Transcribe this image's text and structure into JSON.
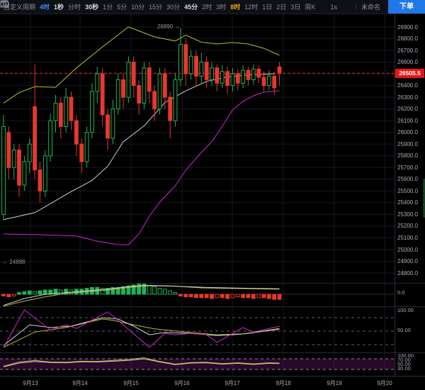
{
  "toolbar": {
    "period_menu": "自定义周期",
    "intervals": [
      {
        "id": "4h",
        "label": "4时",
        "state": "active-blue"
      },
      {
        "id": "1s-sec",
        "label": "1秒",
        "state": "favorite"
      },
      {
        "id": "time-line",
        "label": "分时",
        "state": "normal"
      },
      {
        "id": "30s",
        "label": "30秒",
        "state": "favorite"
      },
      {
        "id": "1m",
        "label": "1分",
        "state": "normal"
      },
      {
        "id": "5m",
        "label": "5分",
        "state": "normal"
      },
      {
        "id": "10m",
        "label": "10分",
        "state": "normal"
      },
      {
        "id": "15m",
        "label": "15分",
        "state": "normal"
      },
      {
        "id": "30m",
        "label": "30分",
        "state": "normal"
      },
      {
        "id": "45m",
        "label": "45分",
        "state": "favorite"
      },
      {
        "id": "2h",
        "label": "2时",
        "state": "normal"
      },
      {
        "id": "3h",
        "label": "3时",
        "state": "normal"
      },
      {
        "id": "8h",
        "label": "8时",
        "state": "active-yellow"
      },
      {
        "id": "12h",
        "label": "12时",
        "state": "normal"
      },
      {
        "id": "1d",
        "label": "1日",
        "state": "normal"
      },
      {
        "id": "2d",
        "label": "2日",
        "state": "normal"
      },
      {
        "id": "3d",
        "label": "3日",
        "state": "normal"
      },
      {
        "id": "1w",
        "label": "周K",
        "state": "normal"
      }
    ],
    "countdown": "1s",
    "layout_name": "未命名",
    "order_button": "下单"
  },
  "annotations": {
    "high_label": "26890 →",
    "alert_label": "← 24888",
    "last_price_label": "26505.5"
  },
  "axis_labels": {
    "price": [
      "26900.0",
      "26800.0",
      "26700.0",
      "26600.0",
      "26500.0",
      "26400.0",
      "26300.0",
      "26200.0",
      "26100.0",
      "26000.0",
      "25900.0",
      "25800.0",
      "25700.0",
      "25600.0",
      "25500.0",
      "25400.0",
      "25300.0",
      "25200.0",
      "25100.0",
      "25000.0",
      "24900.0",
      "24800.0"
    ],
    "time": [
      "9月13",
      "9月14",
      "9月15",
      "9月16",
      "9月17",
      "9月18",
      "9月19",
      "9月20"
    ],
    "volume": [
      "0.0"
    ],
    "kdj": [
      "100.00",
      "50.00"
    ],
    "rsi": [
      "100.00",
      "70.00",
      "50.00",
      "30.00"
    ]
  },
  "colors": {
    "up": "#1eb35b",
    "down": "#e8372c",
    "boll_upper": "#b8bd2a",
    "boll_mid": "#cdd0d8",
    "boll_lower": "#d024d0",
    "price_line": "#f02020",
    "grid": "#15181f",
    "separator": "#232833",
    "dash_level": "#5a5f6a",
    "order_button": "#2079e8"
  },
  "chart_data": {
    "type": "candlestick",
    "title": "",
    "last_price": 26505.5,
    "price_axis": {
      "min": 24800,
      "max": 26900,
      "tick_step": 100
    },
    "time_axis": [
      "9月13",
      "9月14",
      "9月15",
      "9月16",
      "9月17",
      "9月18",
      "9月19",
      "9月20"
    ],
    "high_annotation": {
      "price": 26890,
      "candle_index": 34
    },
    "alert_line": {
      "price": 24888
    },
    "candles": [
      [
        25300,
        26150,
        25250,
        26050
      ],
      [
        26000,
        26050,
        25600,
        25700
      ],
      [
        25700,
        25900,
        25600,
        25850
      ],
      [
        25850,
        25900,
        25450,
        25550
      ],
      [
        25550,
        25800,
        25500,
        25750
      ],
      [
        25750,
        25950,
        25650,
        25900
      ],
      [
        26220,
        26580,
        25600,
        25680
      ],
      [
        25680,
        25750,
        25400,
        25500
      ],
      [
        25500,
        25850,
        25450,
        25800
      ],
      [
        25800,
        26160,
        25750,
        26100
      ],
      [
        26100,
        26320,
        26000,
        26250
      ],
      [
        26250,
        26300,
        25950,
        26050
      ],
      [
        26050,
        26380,
        26000,
        26300
      ],
      [
        26300,
        26350,
        26020,
        26100
      ],
      [
        26100,
        26150,
        25800,
        25900
      ],
      [
        25900,
        25950,
        25650,
        25750
      ],
      [
        25750,
        26050,
        25700,
        26000
      ],
      [
        26000,
        26420,
        25950,
        26350
      ],
      [
        26350,
        26560,
        26250,
        26500
      ],
      [
        26500,
        26550,
        26050,
        26150
      ],
      [
        26150,
        26200,
        25850,
        25950
      ],
      [
        25950,
        26280,
        25900,
        26200
      ],
      [
        26200,
        26500,
        26150,
        26450
      ],
      [
        26450,
        26500,
        26200,
        26300
      ],
      [
        26300,
        26650,
        26250,
        26600
      ],
      [
        26600,
        26650,
        26300,
        26400
      ],
      [
        26400,
        26450,
        26150,
        26250
      ],
      [
        26250,
        26600,
        26200,
        26550
      ],
      [
        26550,
        26600,
        26250,
        26350
      ],
      [
        26350,
        26400,
        26100,
        26200
      ],
      [
        26200,
        26550,
        26150,
        26500
      ],
      [
        26500,
        26550,
        26200,
        26300
      ],
      [
        26300,
        26350,
        25950,
        26100
      ],
      [
        26100,
        26500,
        26050,
        26450
      ],
      [
        26450,
        26890,
        26400,
        26750
      ],
      [
        26750,
        26800,
        26400,
        26500
      ],
      [
        26500,
        26700,
        26450,
        26650
      ],
      [
        26650,
        26700,
        26400,
        26480
      ],
      [
        26480,
        26680,
        26420,
        26600
      ],
      [
        26600,
        26650,
        26380,
        26450
      ],
      [
        26450,
        26600,
        26400,
        26550
      ],
      [
        26550,
        26580,
        26350,
        26420
      ],
      [
        26420,
        26570,
        26380,
        26520
      ],
      [
        26520,
        26560,
        26330,
        26400
      ],
      [
        26400,
        26550,
        26350,
        26500
      ],
      [
        26500,
        26540,
        26360,
        26420
      ],
      [
        26420,
        26570,
        26380,
        26530
      ],
      [
        26530,
        26560,
        26400,
        26450
      ],
      [
        26450,
        26580,
        26410,
        26540
      ],
      [
        26540,
        26570,
        26420,
        26470
      ],
      [
        26470,
        26520,
        26350,
        26400
      ],
      [
        26400,
        26530,
        26360,
        26480
      ],
      [
        26480,
        26520,
        26320,
        26380
      ],
      [
        26560,
        26600,
        26400,
        26505.5
      ]
    ],
    "bollinger": {
      "upper": [
        [
          0,
          26250
        ],
        [
          3,
          26340
        ],
        [
          6,
          26390
        ],
        [
          10,
          26385
        ],
        [
          14,
          26550
        ],
        [
          19,
          26730
        ],
        [
          24,
          26900
        ],
        [
          29,
          26815
        ],
        [
          33,
          26780
        ],
        [
          35,
          26830
        ],
        [
          38,
          26770
        ],
        [
          41,
          26755
        ],
        [
          44,
          26767
        ],
        [
          47,
          26755
        ],
        [
          50,
          26718
        ],
        [
          53,
          26658
        ]
      ],
      "mid": [
        [
          0,
          25255
        ],
        [
          6,
          25315
        ],
        [
          13,
          25495
        ],
        [
          17,
          25590
        ],
        [
          20,
          25710
        ],
        [
          23,
          25920
        ],
        [
          27,
          26055
        ],
        [
          31,
          26255
        ],
        [
          35,
          26355
        ],
        [
          39,
          26435
        ],
        [
          43,
          26475
        ],
        [
          47,
          26490
        ],
        [
          52,
          26500
        ]
      ],
      "lower": [
        [
          0,
          25133
        ],
        [
          7,
          25127
        ],
        [
          14,
          25115
        ],
        [
          18,
          25072
        ],
        [
          22,
          25042
        ],
        [
          24,
          25040
        ],
        [
          26,
          25133
        ],
        [
          28,
          25284
        ],
        [
          30,
          25405
        ],
        [
          33,
          25545
        ],
        [
          35,
          25678
        ],
        [
          38,
          25829
        ],
        [
          40,
          25920
        ],
        [
          42,
          26053
        ],
        [
          44,
          26192
        ],
        [
          46,
          26265
        ],
        [
          48,
          26313
        ],
        [
          50,
          26343
        ],
        [
          53,
          26355
        ]
      ]
    },
    "macd": {
      "histogram": [
        -2,
        -3,
        -2,
        2,
        3,
        4,
        3,
        4,
        5,
        5,
        6,
        5,
        6,
        5,
        6,
        6,
        7,
        8,
        8,
        7,
        7,
        8,
        8,
        9,
        10,
        11,
        12,
        12,
        10,
        9,
        7,
        6,
        4,
        2,
        -2,
        -3,
        -3,
        -4,
        -4,
        -4,
        -5,
        -4,
        -4,
        -5,
        -4,
        -3,
        -4,
        -4,
        -5,
        -4,
        -4,
        -5,
        -6,
        -6
      ],
      "macd_line": [
        [
          0,
          -13
        ],
        [
          4,
          -5
        ],
        [
          8,
          0
        ],
        [
          12,
          2
        ],
        [
          16,
          4
        ],
        [
          20,
          6
        ],
        [
          24,
          9
        ],
        [
          27,
          10.5
        ],
        [
          31,
          10
        ],
        [
          35,
          9
        ],
        [
          39,
          8
        ],
        [
          43,
          7.5
        ],
        [
          47,
          7
        ],
        [
          53,
          6.5
        ]
      ],
      "signal_line": [
        [
          0,
          -14
        ],
        [
          4,
          -8
        ],
        [
          8,
          -3
        ],
        [
          12,
          1
        ],
        [
          16,
          3
        ],
        [
          20,
          5
        ],
        [
          24,
          8
        ],
        [
          28,
          10
        ],
        [
          33,
          9.5
        ],
        [
          38,
          7.5
        ],
        [
          43,
          7
        ],
        [
          48,
          6.5
        ],
        [
          53,
          6
        ]
      ]
    },
    "kdj": {
      "levels": [
        80,
        50,
        20
      ],
      "k": [
        [
          0,
          14
        ],
        [
          4,
          97
        ],
        [
          9,
          53
        ],
        [
          12,
          64
        ],
        [
          14,
          56
        ],
        [
          20,
          93
        ],
        [
          22,
          74
        ],
        [
          28,
          14
        ],
        [
          31,
          45
        ],
        [
          33,
          42
        ],
        [
          36,
          45
        ],
        [
          39,
          42
        ],
        [
          41,
          25
        ],
        [
          44,
          45
        ],
        [
          46,
          58
        ],
        [
          48,
          48
        ],
        [
          53,
          61
        ]
      ],
      "d": [
        [
          0,
          18
        ],
        [
          5,
          64
        ],
        [
          9,
          58
        ],
        [
          13,
          61
        ],
        [
          19,
          80
        ],
        [
          22,
          77
        ],
        [
          25,
          61
        ],
        [
          28,
          42
        ],
        [
          31,
          47
        ],
        [
          36,
          45
        ],
        [
          41,
          40
        ],
        [
          44,
          42
        ],
        [
          47,
          45
        ],
        [
          53,
          56
        ]
      ],
      "j": [
        [
          0,
          14
        ],
        [
          6,
          48
        ],
        [
          12,
          58
        ],
        [
          19,
          77
        ],
        [
          21,
          74
        ],
        [
          25,
          64
        ],
        [
          29,
          55
        ],
        [
          35,
          48
        ],
        [
          41,
          42
        ],
        [
          46,
          44
        ],
        [
          53,
          54
        ]
      ]
    },
    "rsi": {
      "levels": [
        70,
        30
      ],
      "rsi_fast": [
        [
          0,
          42
        ],
        [
          3,
          58
        ],
        [
          6,
          64
        ],
        [
          9,
          58
        ],
        [
          12,
          57
        ],
        [
          15,
          61
        ],
        [
          18,
          60
        ],
        [
          21,
          64
        ],
        [
          24,
          68
        ],
        [
          27,
          74
        ],
        [
          30,
          60
        ],
        [
          33,
          50
        ],
        [
          36,
          56
        ],
        [
          39,
          57
        ],
        [
          42,
          52
        ],
        [
          45,
          55
        ],
        [
          48,
          51
        ],
        [
          51,
          55
        ],
        [
          53,
          54
        ]
      ],
      "rsi_slow": [
        [
          0,
          40
        ],
        [
          3,
          54
        ],
        [
          6,
          60
        ],
        [
          9,
          56
        ],
        [
          12,
          55
        ],
        [
          15,
          59
        ],
        [
          18,
          58
        ],
        [
          21,
          61
        ],
        [
          24,
          64
        ],
        [
          27,
          70
        ],
        [
          30,
          58
        ],
        [
          33,
          48
        ],
        [
          36,
          54
        ],
        [
          39,
          55
        ],
        [
          42,
          50
        ],
        [
          45,
          53
        ],
        [
          48,
          49
        ],
        [
          51,
          53
        ],
        [
          53,
          52
        ]
      ]
    }
  }
}
